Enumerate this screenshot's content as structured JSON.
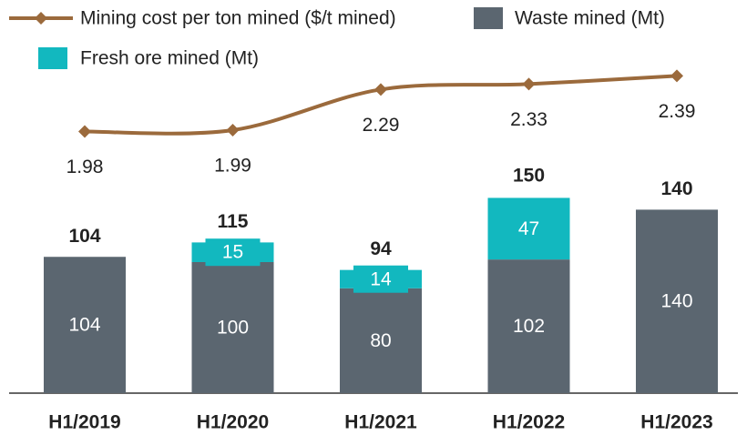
{
  "chart_data": {
    "type": "bar-line",
    "categories": [
      "H1/2019",
      "H1/2020",
      "H1/2021",
      "H1/2022",
      "H1/2023"
    ],
    "series": [
      {
        "name": "Mining cost per ton mined ($/t mined)",
        "type": "line",
        "axis": "y2",
        "color": "#9b6a3c",
        "values": [
          1.98,
          1.99,
          2.29,
          2.33,
          2.39
        ]
      },
      {
        "name": "Waste mined (Mt)",
        "type": "bar",
        "color": "#5b6670",
        "values": [
          104,
          100,
          80,
          102,
          140
        ]
      },
      {
        "name": "Fresh ore mined (Mt)",
        "type": "bar",
        "color": "#12b8bf",
        "values": [
          null,
          15,
          14,
          47,
          null
        ]
      }
    ],
    "totals": [
      104,
      115,
      94,
      150,
      140
    ],
    "ylim": [
      0,
      300
    ],
    "y2lim": [
      0.05,
      2.95
    ]
  }
}
